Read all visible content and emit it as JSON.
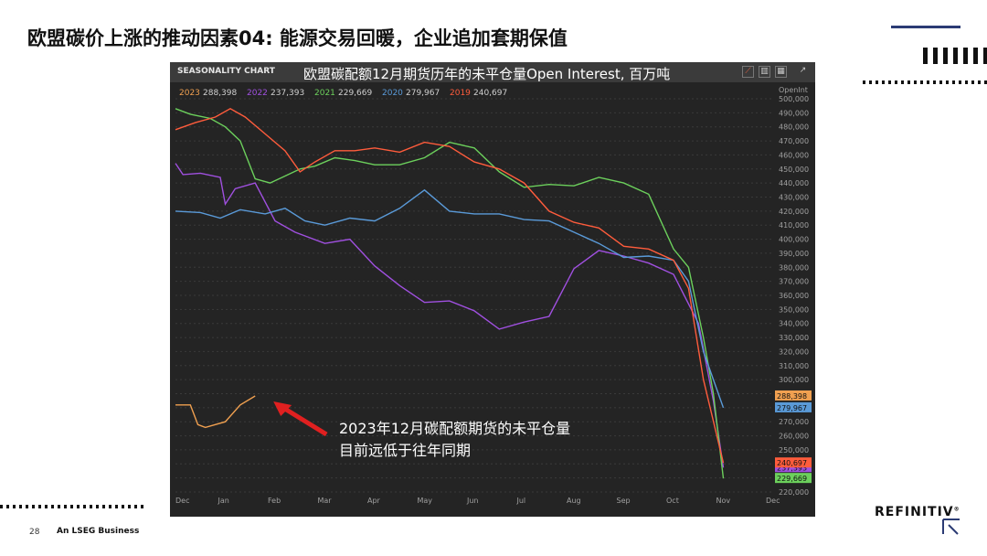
{
  "slide": {
    "title": "欧盟碳价上涨的推动因素04: 能源交易回暖，企业追加套期保值",
    "page_number": "28",
    "footer": "An LSEG Business",
    "brand": "REFINITIV",
    "brand_mark": "®"
  },
  "colors": {
    "accent_navy": "#2b3b74",
    "panel_bg": "#242424",
    "arrow_red": "#e02020"
  },
  "chart_data": {
    "type": "line",
    "panel_title": "SEASONALITY CHART",
    "title": "欧盟碳配额12月期货历年的未平仓量Open Interest, 百万吨",
    "axis_title": "OpenInt",
    "x_ticks": [
      "Dec",
      "Jan",
      "Feb",
      "Mar",
      "Apr",
      "May",
      "Jun",
      "Jul",
      "Aug",
      "Sep",
      "Oct",
      "Nov",
      "Dec"
    ],
    "y_ticks": [
      "500,000",
      "490,000",
      "480,000",
      "470,000",
      "460,000",
      "450,000",
      "440,000",
      "430,000",
      "420,000",
      "410,000",
      "400,000",
      "390,000",
      "380,000",
      "370,000",
      "360,000",
      "350,000",
      "340,000",
      "330,000",
      "320,000",
      "310,000",
      "300,000",
      "290,000",
      "280,000",
      "270,000",
      "260,000",
      "250,000",
      "240,000",
      "230,000",
      "220,000"
    ],
    "ylim": [
      220000,
      500000
    ],
    "x_range_months": [
      0,
      12
    ],
    "series": [
      {
        "name": "2023",
        "legend": "288,398",
        "last_label": "288,398",
        "color": "#f0a050",
        "points": [
          [
            0,
            282000
          ],
          [
            0.3,
            282000
          ],
          [
            0.45,
            268000
          ],
          [
            0.6,
            266000
          ],
          [
            0.8,
            268000
          ],
          [
            1.0,
            270000
          ],
          [
            1.3,
            282000
          ],
          [
            1.6,
            288398
          ]
        ]
      },
      {
        "name": "2022",
        "legend": "237,393",
        "last_label": "237,393",
        "color": "#a050e0",
        "points": [
          [
            0,
            454000
          ],
          [
            0.15,
            446000
          ],
          [
            0.5,
            447000
          ],
          [
            0.9,
            444000
          ],
          [
            1.0,
            425000
          ],
          [
            1.2,
            436000
          ],
          [
            1.6,
            440000
          ],
          [
            2.0,
            413000
          ],
          [
            2.4,
            405000
          ],
          [
            3.0,
            397000
          ],
          [
            3.5,
            400000
          ],
          [
            4.0,
            381000
          ],
          [
            4.5,
            367000
          ],
          [
            5.0,
            355000
          ],
          [
            5.5,
            356000
          ],
          [
            6.0,
            349000
          ],
          [
            6.5,
            336000
          ],
          [
            7.0,
            341000
          ],
          [
            7.5,
            345000
          ],
          [
            8.0,
            379000
          ],
          [
            8.5,
            392000
          ],
          [
            9.0,
            388000
          ],
          [
            9.5,
            383000
          ],
          [
            10.0,
            375000
          ],
          [
            10.5,
            340000
          ],
          [
            10.8,
            285000
          ],
          [
            11.0,
            237393
          ]
        ]
      },
      {
        "name": "2021",
        "legend": "229,669",
        "last_label": "229,669",
        "color": "#6cd05c",
        "points": [
          [
            0,
            493000
          ],
          [
            0.3,
            489000
          ],
          [
            0.7,
            486000
          ],
          [
            1.0,
            480000
          ],
          [
            1.3,
            470000
          ],
          [
            1.6,
            443000
          ],
          [
            1.9,
            440000
          ],
          [
            2.2,
            445000
          ],
          [
            2.5,
            450000
          ],
          [
            2.8,
            452000
          ],
          [
            3.2,
            458000
          ],
          [
            3.6,
            456000
          ],
          [
            4.0,
            453000
          ],
          [
            4.5,
            453000
          ],
          [
            5.0,
            458000
          ],
          [
            5.5,
            469000
          ],
          [
            6.0,
            465000
          ],
          [
            6.5,
            448000
          ],
          [
            7.0,
            437000
          ],
          [
            7.5,
            439000
          ],
          [
            8.0,
            438000
          ],
          [
            8.5,
            444000
          ],
          [
            9.0,
            440000
          ],
          [
            9.5,
            432000
          ],
          [
            10.0,
            393000
          ],
          [
            10.3,
            380000
          ],
          [
            10.6,
            330000
          ],
          [
            10.8,
            290000
          ],
          [
            11.0,
            229669
          ]
        ]
      },
      {
        "name": "2020",
        "legend": "279,967",
        "last_label": "279,967",
        "color": "#5a9ad8",
        "points": [
          [
            0,
            420000
          ],
          [
            0.5,
            419000
          ],
          [
            0.9,
            415000
          ],
          [
            1.3,
            421000
          ],
          [
            1.8,
            418000
          ],
          [
            2.2,
            422000
          ],
          [
            2.6,
            413000
          ],
          [
            3.0,
            410000
          ],
          [
            3.5,
            415000
          ],
          [
            4.0,
            413000
          ],
          [
            4.5,
            422000
          ],
          [
            5.0,
            435000
          ],
          [
            5.5,
            420000
          ],
          [
            6.0,
            418000
          ],
          [
            6.5,
            418000
          ],
          [
            7.0,
            414000
          ],
          [
            7.5,
            413000
          ],
          [
            8.0,
            405000
          ],
          [
            8.5,
            397000
          ],
          [
            9.0,
            387000
          ],
          [
            9.5,
            388000
          ],
          [
            10.0,
            385000
          ],
          [
            10.3,
            370000
          ],
          [
            10.6,
            320000
          ],
          [
            11.0,
            279967
          ]
        ]
      },
      {
        "name": "2019",
        "legend": "240,697",
        "last_label": "240,697",
        "color": "#ff5c3c",
        "points": [
          [
            0,
            478000
          ],
          [
            0.4,
            483000
          ],
          [
            0.8,
            487000
          ],
          [
            1.1,
            493000
          ],
          [
            1.4,
            487000
          ],
          [
            1.8,
            475000
          ],
          [
            2.2,
            463000
          ],
          [
            2.5,
            448000
          ],
          [
            2.8,
            455000
          ],
          [
            3.2,
            463000
          ],
          [
            3.6,
            463000
          ],
          [
            4.0,
            465000
          ],
          [
            4.5,
            462000
          ],
          [
            5.0,
            469000
          ],
          [
            5.5,
            466000
          ],
          [
            6.0,
            455000
          ],
          [
            6.5,
            450000
          ],
          [
            7.0,
            440000
          ],
          [
            7.5,
            420000
          ],
          [
            8.0,
            412000
          ],
          [
            8.5,
            408000
          ],
          [
            9.0,
            395000
          ],
          [
            9.5,
            393000
          ],
          [
            10.0,
            385000
          ],
          [
            10.3,
            365000
          ],
          [
            10.6,
            300000
          ],
          [
            11.0,
            240697
          ]
        ]
      }
    ],
    "annotation": {
      "lines": [
        "2023年12月碳配额期货的未平仓量",
        "目前远低于往年同期"
      ]
    }
  }
}
